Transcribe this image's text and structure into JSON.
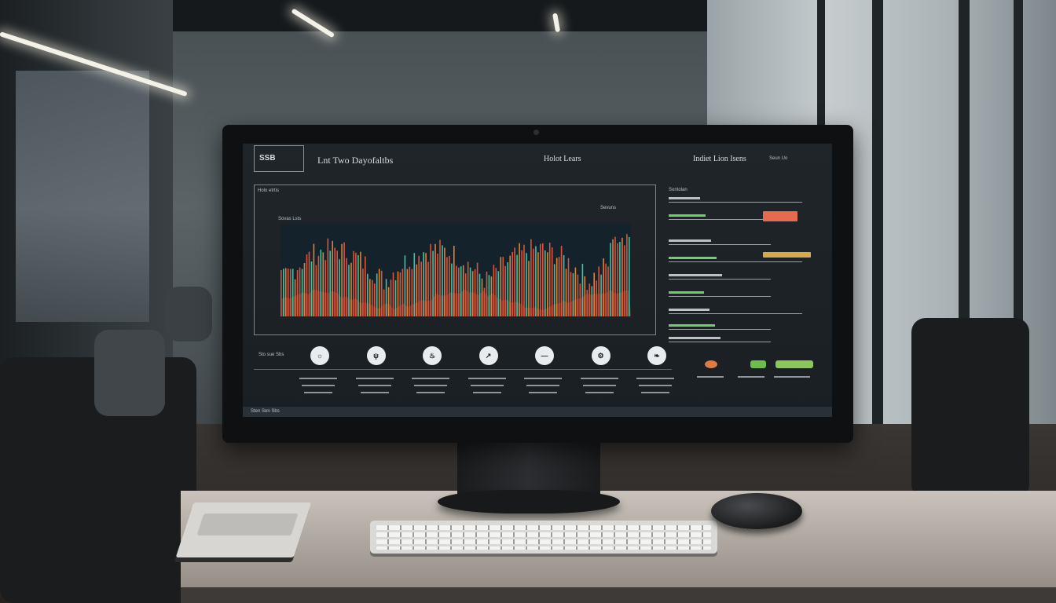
{
  "screen": {
    "brand": "SSB",
    "header_left": "Lnt Two Dayofaltbs",
    "header_center": "Holot Lears",
    "header_right": "Indiet Lion Isens",
    "chart_title": "Holo etrtis",
    "chart_legend": "Sevuns",
    "chart_axis_caption": "Sovas Lsts",
    "bottom_caption": "Sto sue Sbs",
    "footer_text": "Sten Sen Sbs",
    "right_panel_title": "Sontolan",
    "right_panel_meta": "Seun Uo",
    "circle_icons": [
      "sun-icon",
      "fork-icon",
      "fire-icon",
      "cursor-icon",
      "line-icon",
      "gear-icon",
      "leaf-icon"
    ],
    "circle_glyphs": [
      "☼",
      "ψ",
      "♨",
      "↗",
      "—",
      "⚙",
      "❧"
    ],
    "colors": {
      "bar_red": "#d8553c",
      "bar_teal": "#3ec3a8",
      "bar_orange": "#e0812f",
      "accent_red": "#e56a50",
      "accent_gold": "#d6a94a",
      "accent_green": "#7ec24f"
    },
    "right_bars": [
      {
        "color": "#e56a50",
        "fraction": 0.4
      },
      {
        "color": "#d6a94a",
        "fraction": 0.55
      }
    ],
    "bottom_right_icons": [
      {
        "name": "orange-badge-icon",
        "color": "#e07a45"
      },
      {
        "name": "green-badge-icon",
        "color": "#6fbd4a"
      },
      {
        "name": "green-bar-icon",
        "color": "#8dc65c"
      }
    ]
  }
}
